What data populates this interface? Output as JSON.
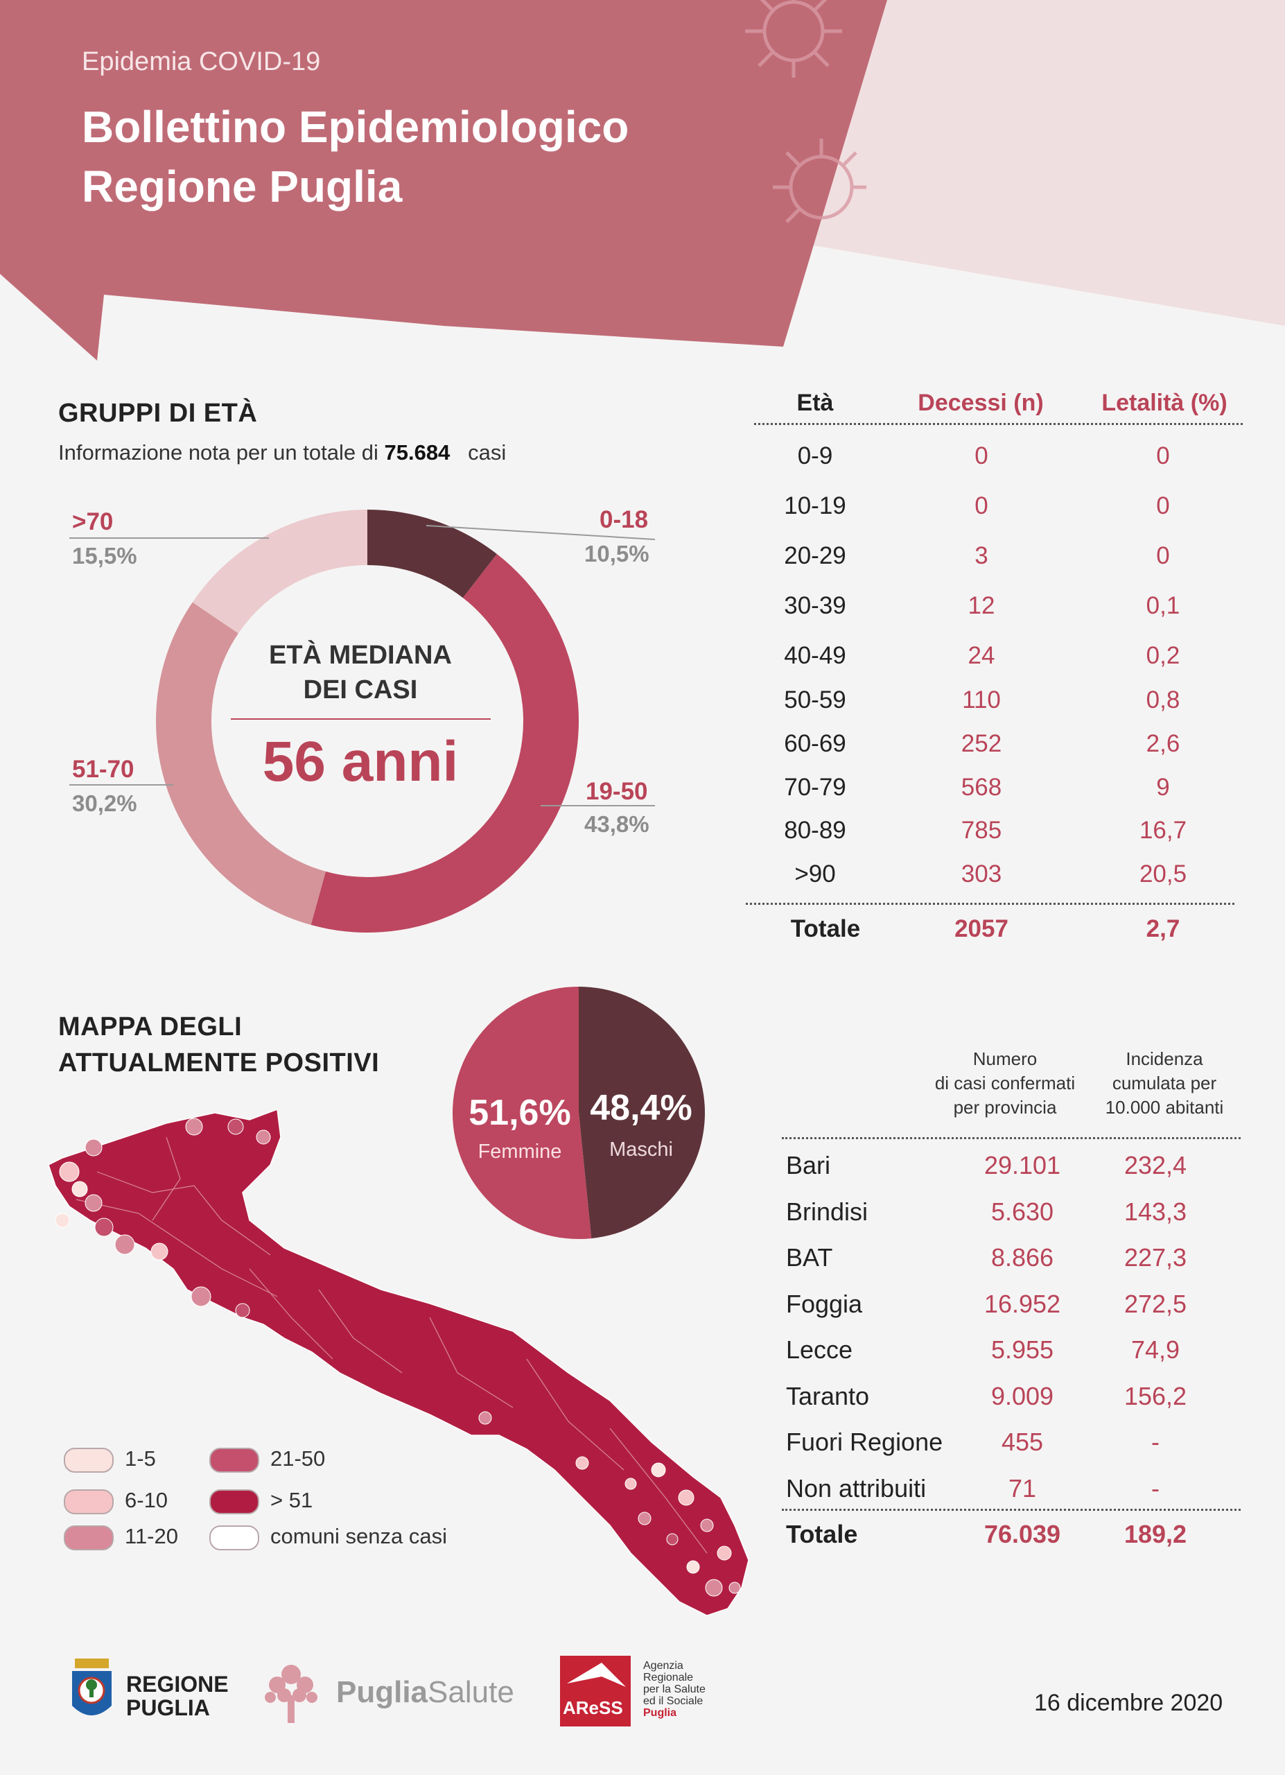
{
  "header": {
    "kicker": "Epidemia COVID-19",
    "title_line1": "Bollettino Epidemiologico",
    "title_line2": "Regione Puglia"
  },
  "age_groups": {
    "title": "GRUPPI DI ETÀ",
    "info_prefix": "Informazione nota per un totale di",
    "info_value": "75.684",
    "info_suffix": "casi",
    "center_label_1": "ETÀ MEDIANA",
    "center_label_2": "DEI CASI",
    "center_value": "56 anni",
    "labels": [
      {
        "group": "0-18",
        "pct": "10,5%"
      },
      {
        "group": "19-50",
        "pct": "43,8%"
      },
      {
        "group": "51-70",
        "pct": "30,2%"
      },
      {
        "group": ">70",
        "pct": "15,5%"
      }
    ]
  },
  "chart_data": [
    {
      "type": "pie",
      "subtype": "donut",
      "categories": [
        "0-18",
        "19-50",
        "51-70",
        ">70"
      ],
      "values": [
        10.5,
        43.8,
        30.2,
        15.5
      ],
      "colors": [
        "#5e343a",
        "#bd4760",
        "#d4949a",
        "#ebcbce"
      ]
    },
    {
      "type": "pie",
      "categories": [
        "Femmine",
        "Maschi"
      ],
      "values": [
        51.6,
        48.4
      ],
      "colors": [
        "#bd4760",
        "#5e343a"
      ]
    }
  ],
  "deaths_table": {
    "headers": [
      "Età",
      "Decessi (n)",
      "Letalità (%)"
    ],
    "rows": [
      [
        "0-9",
        "0",
        "0"
      ],
      [
        "10-19",
        "0",
        "0"
      ],
      [
        "20-29",
        "3",
        "0"
      ],
      [
        "30-39",
        "12",
        "0,1"
      ],
      [
        "40-49",
        "24",
        "0,2"
      ],
      [
        "50-59",
        "110",
        "0,8"
      ],
      [
        "60-69",
        "252",
        "2,6"
      ],
      [
        "70-79",
        "568",
        "9"
      ],
      [
        "80-89",
        "785",
        "16,7"
      ],
      [
        ">90",
        "303",
        "20,5"
      ]
    ],
    "total": [
      "Totale",
      "2057",
      "2,7"
    ]
  },
  "map": {
    "title_line1": "MAPPA DEGLI",
    "title_line2": "ATTUALMENTE POSITIVI",
    "legend": [
      {
        "label": "1-5",
        "color": "#fbe3df"
      },
      {
        "label": "6-10",
        "color": "#f6c4c6"
      },
      {
        "label": "11-20",
        "color": "#d98a9a"
      },
      {
        "label": "21-50",
        "color": "#c4506d"
      },
      {
        "label": "> 51",
        "color": "#b11d42"
      },
      {
        "label": "comuni senza casi",
        "color": "#ffffff"
      }
    ]
  },
  "sex": {
    "female_pct": "51,6%",
    "female_label": "Femmine",
    "male_pct": "48,4%",
    "male_label": "Maschi"
  },
  "province_table": {
    "col1": [
      "Numero",
      "di casi confermati",
      "per provincia"
    ],
    "col2": [
      "Incidenza",
      "cumulata per",
      "10.000 abitanti"
    ],
    "rows": [
      [
        "Bari",
        "29.101",
        "232,4"
      ],
      [
        "Brindisi",
        "5.630",
        "143,3"
      ],
      [
        "BAT",
        "8.866",
        "227,3"
      ],
      [
        "Foggia",
        "16.952",
        "272,5"
      ],
      [
        "Lecce",
        "5.955",
        "74,9"
      ],
      [
        "Taranto",
        "9.009",
        "156,2"
      ],
      [
        "Fuori Regione",
        "455",
        "-"
      ],
      [
        "Non attribuiti",
        "71",
        "-"
      ]
    ],
    "total": [
      "Totale",
      "76.039",
      "189,2"
    ]
  },
  "footer": {
    "logo1_line1": "REGIONE",
    "logo1_line2": "PUGLIA",
    "logo2_a": "Puglia",
    "logo2_b": "Salute",
    "logo3_badge": "AReSS",
    "logo3_text": [
      "Agenzia",
      "Regionale",
      "per la Salute",
      "ed il Sociale",
      "Puglia"
    ],
    "date": "16 dicembre 2020"
  }
}
